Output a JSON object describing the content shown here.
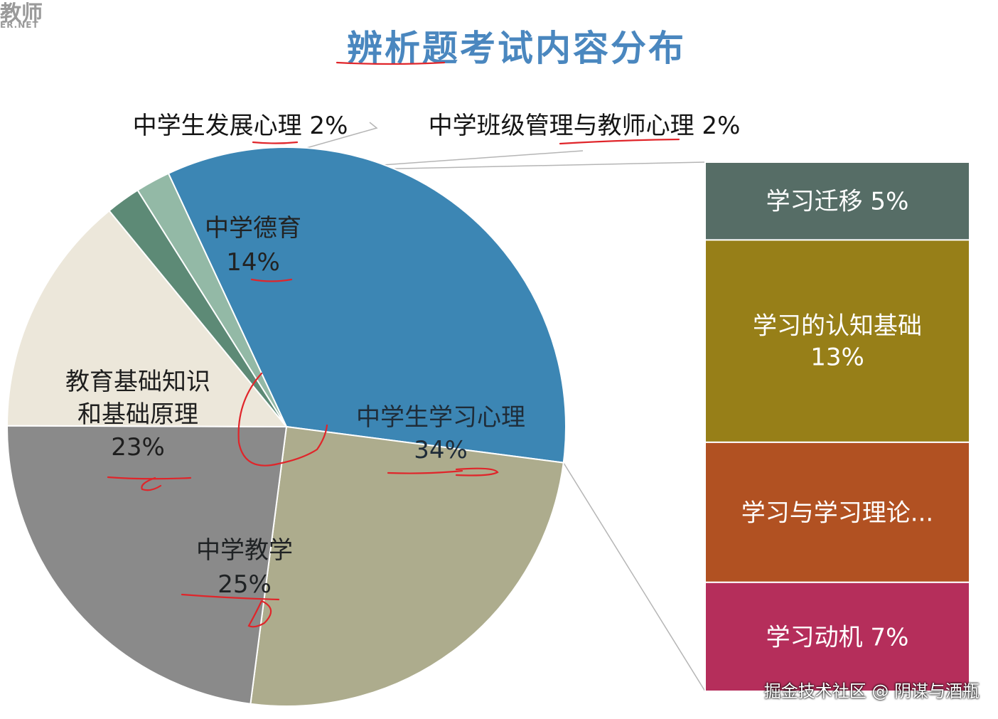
{
  "logo": {
    "main": "教师",
    "sub": "ER.NET"
  },
  "watermark": "掘金技术社区 @ 阴谋与酒瓶",
  "chart_data": {
    "type": "pie",
    "title": "辨析题考试内容分布",
    "slices": [
      {
        "label": "中学生学习心理",
        "value": 34,
        "display": "34%",
        "color": "#3c86b4",
        "label_lines": [
          "中学生学习心理",
          "34%"
        ]
      },
      {
        "label": "中学教学",
        "value": 25,
        "display": "25%",
        "color": "#adac8d",
        "label_lines": [
          "中学教学",
          "25%"
        ]
      },
      {
        "label": "教育基础知识和基础原理",
        "value": 23,
        "display": "23%",
        "color": "#8a8a8a",
        "label_lines": [
          "教育基础知识",
          "和基础原理",
          "23%"
        ]
      },
      {
        "label": "中学德育",
        "value": 14,
        "display": "14%",
        "color": "#ece7da",
        "label_lines": [
          "中学德育",
          "14%"
        ]
      },
      {
        "label": "中学生发展心理",
        "value": 2,
        "display": "2%",
        "color": "#5d8a76",
        "label_lines": [
          "中学生发展心理  2%"
        ]
      },
      {
        "label": "中学班级管理与教师心理",
        "value": 2,
        "display": "2%",
        "color": "#93b9a6",
        "label_lines": [
          "中学班级管理与教师心理  2%"
        ]
      }
    ],
    "breakdown": {
      "of": "中学生学习心理",
      "segments": [
        {
          "label": "学习迁移",
          "value": 5,
          "display": "学习迁移  5%",
          "color": "#566d66",
          "label_lines": [
            "学习迁移  5%"
          ]
        },
        {
          "label": "学习的认知基础",
          "value": 13,
          "display": "13%",
          "color": "#977f18",
          "label_lines": [
            "学习的认知基础",
            "13%"
          ]
        },
        {
          "label": "学习与学习理论...",
          "value": 9,
          "display": "",
          "color": "#b15122",
          "label_lines": [
            "学习与学习理论..."
          ]
        },
        {
          "label": "学习动机",
          "value": 7,
          "display": "学习动机  7%",
          "color": "#b52e5b",
          "label_lines": [
            "学习动机  7%"
          ]
        }
      ]
    }
  }
}
